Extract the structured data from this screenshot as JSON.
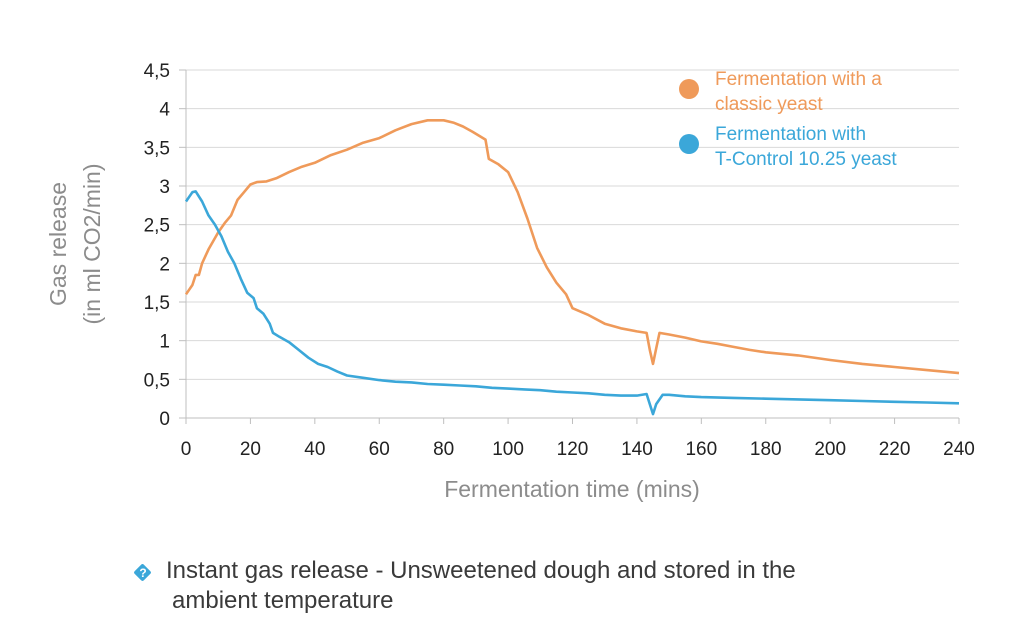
{
  "chart_data": {
    "type": "line",
    "xlabel": "Fermentation time (mins)",
    "ylabel_line1": "Gas release",
    "ylabel_line2": "(in ml CO2/min)",
    "xlim": [
      0,
      240
    ],
    "ylim": [
      0,
      4.5
    ],
    "x_ticks": [
      "0",
      "20",
      "40",
      "60",
      "80",
      "100",
      "120",
      "140",
      "160",
      "180",
      "200",
      "220",
      "240"
    ],
    "y_ticks": [
      "0",
      "0,5",
      "1",
      "1,5",
      "2",
      "2,5",
      "3",
      "3,5",
      "4",
      "4,5"
    ],
    "grid": "horizontal",
    "legend_position": "top-right",
    "series": [
      {
        "name_line1": "Fermentation with a",
        "name_line2": "classic yeast",
        "color": "#ef9a5a",
        "points": [
          [
            0,
            1.6
          ],
          [
            2,
            1.72
          ],
          [
            3,
            1.85
          ],
          [
            4,
            1.85
          ],
          [
            5,
            2.0
          ],
          [
            7,
            2.18
          ],
          [
            10,
            2.4
          ],
          [
            12,
            2.52
          ],
          [
            14,
            2.62
          ],
          [
            16,
            2.82
          ],
          [
            18,
            2.92
          ],
          [
            20,
            3.02
          ],
          [
            22,
            3.05
          ],
          [
            25,
            3.06
          ],
          [
            28,
            3.1
          ],
          [
            32,
            3.18
          ],
          [
            36,
            3.25
          ],
          [
            40,
            3.3
          ],
          [
            45,
            3.4
          ],
          [
            50,
            3.47
          ],
          [
            55,
            3.56
          ],
          [
            60,
            3.62
          ],
          [
            65,
            3.72
          ],
          [
            70,
            3.8
          ],
          [
            75,
            3.85
          ],
          [
            80,
            3.85
          ],
          [
            83,
            3.82
          ],
          [
            86,
            3.77
          ],
          [
            89,
            3.7
          ],
          [
            93,
            3.6
          ],
          [
            94,
            3.35
          ],
          [
            97,
            3.28
          ],
          [
            100,
            3.18
          ],
          [
            103,
            2.92
          ],
          [
            106,
            2.58
          ],
          [
            109,
            2.2
          ],
          [
            112,
            1.95
          ],
          [
            115,
            1.75
          ],
          [
            118,
            1.6
          ],
          [
            120,
            1.42
          ],
          [
            125,
            1.33
          ],
          [
            130,
            1.22
          ],
          [
            135,
            1.16
          ],
          [
            140,
            1.12
          ],
          [
            143,
            1.1
          ],
          [
            144,
            0.88
          ],
          [
            145,
            0.7
          ],
          [
            146,
            0.9
          ],
          [
            147,
            1.1
          ],
          [
            150,
            1.08
          ],
          [
            155,
            1.04
          ],
          [
            160,
            0.99
          ],
          [
            165,
            0.96
          ],
          [
            170,
            0.92
          ],
          [
            175,
            0.88
          ],
          [
            180,
            0.85
          ],
          [
            190,
            0.81
          ],
          [
            200,
            0.75
          ],
          [
            210,
            0.7
          ],
          [
            220,
            0.66
          ],
          [
            230,
            0.62
          ],
          [
            240,
            0.58
          ]
        ]
      },
      {
        "name_line1": "Fermentation with",
        "name_line2": "T-Control 10.25 yeast",
        "color": "#3ba7d9",
        "points": [
          [
            0,
            2.8
          ],
          [
            2,
            2.92
          ],
          [
            3,
            2.93
          ],
          [
            5,
            2.8
          ],
          [
            7,
            2.62
          ],
          [
            9,
            2.5
          ],
          [
            11,
            2.35
          ],
          [
            13,
            2.15
          ],
          [
            15,
            2.0
          ],
          [
            17,
            1.8
          ],
          [
            19,
            1.62
          ],
          [
            21,
            1.55
          ],
          [
            22,
            1.42
          ],
          [
            24,
            1.35
          ],
          [
            26,
            1.22
          ],
          [
            27,
            1.1
          ],
          [
            29,
            1.05
          ],
          [
            32,
            0.98
          ],
          [
            35,
            0.88
          ],
          [
            38,
            0.78
          ],
          [
            41,
            0.7
          ],
          [
            44,
            0.66
          ],
          [
            47,
            0.6
          ],
          [
            50,
            0.55
          ],
          [
            55,
            0.52
          ],
          [
            60,
            0.49
          ],
          [
            65,
            0.47
          ],
          [
            70,
            0.46
          ],
          [
            75,
            0.44
          ],
          [
            80,
            0.43
          ],
          [
            85,
            0.42
          ],
          [
            90,
            0.41
          ],
          [
            95,
            0.39
          ],
          [
            100,
            0.38
          ],
          [
            105,
            0.37
          ],
          [
            110,
            0.36
          ],
          [
            115,
            0.34
          ],
          [
            120,
            0.33
          ],
          [
            125,
            0.32
          ],
          [
            130,
            0.3
          ],
          [
            135,
            0.29
          ],
          [
            140,
            0.29
          ],
          [
            143,
            0.31
          ],
          [
            144,
            0.18
          ],
          [
            145,
            0.05
          ],
          [
            146,
            0.18
          ],
          [
            148,
            0.3
          ],
          [
            150,
            0.3
          ],
          [
            155,
            0.28
          ],
          [
            160,
            0.27
          ],
          [
            170,
            0.26
          ],
          [
            180,
            0.25
          ],
          [
            190,
            0.24
          ],
          [
            200,
            0.23
          ],
          [
            210,
            0.22
          ],
          [
            220,
            0.21
          ],
          [
            230,
            0.2
          ],
          [
            240,
            0.19
          ]
        ]
      }
    ]
  },
  "caption": {
    "icon": "question-diamond-icon",
    "text_line1": "Instant gas release - Unsweetened dough and stored in the",
    "text_line2": "ambient temperature"
  }
}
